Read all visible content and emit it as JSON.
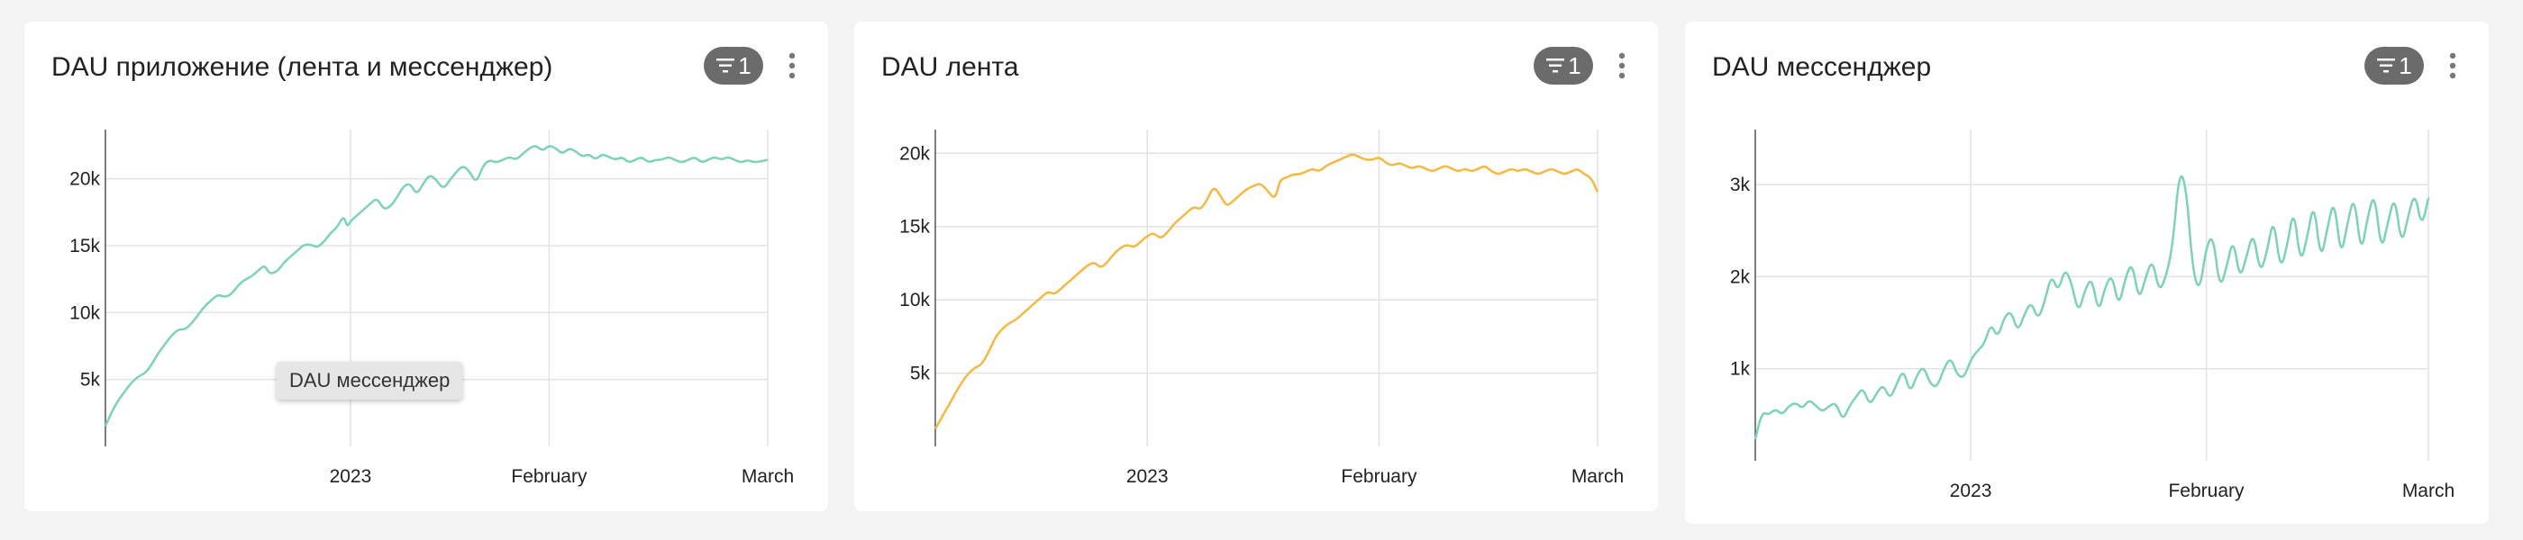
{
  "cards": [
    {
      "title": "DAU приложение (лента и мессенджер)",
      "filter_count": "1",
      "filter_icon": "filter-icon",
      "menu_icon": "more-vertical-icon",
      "tooltip": "DAU мессенджер"
    },
    {
      "title": "DAU лента",
      "filter_count": "1",
      "filter_icon": "filter-icon",
      "menu_icon": "more-vertical-icon"
    },
    {
      "title": "DAU мессенджер",
      "filter_count": "1",
      "filter_icon": "filter-icon",
      "menu_icon": "more-vertical-icon"
    }
  ],
  "chart_data": [
    {
      "type": "line",
      "color": "#7dd3b4",
      "ylim": [
        0,
        23000
      ],
      "yticks": [
        5000,
        10000,
        15000,
        20000
      ],
      "ytick_labels": [
        "5k",
        "10k",
        "15k",
        "20k"
      ],
      "x_ticks": [
        {
          "label": "2023",
          "t": 0.37
        },
        {
          "label": "February",
          "t": 0.67
        },
        {
          "label": "March",
          "t": 1.0
        }
      ],
      "points": [
        [
          0,
          0.07
        ],
        [
          0.01,
          0.12
        ],
        [
          0.02,
          0.16
        ],
        [
          0.03,
          0.19
        ],
        [
          0.04,
          0.22
        ],
        [
          0.05,
          0.24
        ],
        [
          0.06,
          0.25
        ],
        [
          0.07,
          0.28
        ],
        [
          0.08,
          0.32
        ],
        [
          0.09,
          0.35
        ],
        [
          0.1,
          0.38
        ],
        [
          0.11,
          0.4
        ],
        [
          0.12,
          0.4
        ],
        [
          0.13,
          0.42
        ],
        [
          0.14,
          0.45
        ],
        [
          0.15,
          0.48
        ],
        [
          0.16,
          0.5
        ],
        [
          0.17,
          0.52
        ],
        [
          0.18,
          0.51
        ],
        [
          0.19,
          0.52
        ],
        [
          0.2,
          0.55
        ],
        [
          0.21,
          0.57
        ],
        [
          0.22,
          0.58
        ],
        [
          0.23,
          0.6
        ],
        [
          0.24,
          0.62
        ],
        [
          0.245,
          0.6
        ],
        [
          0.25,
          0.59
        ],
        [
          0.26,
          0.6
        ],
        [
          0.27,
          0.63
        ],
        [
          0.28,
          0.65
        ],
        [
          0.29,
          0.67
        ],
        [
          0.3,
          0.69
        ],
        [
          0.31,
          0.69
        ],
        [
          0.32,
          0.68
        ],
        [
          0.33,
          0.7
        ],
        [
          0.34,
          0.73
        ],
        [
          0.35,
          0.75
        ],
        [
          0.36,
          0.79
        ],
        [
          0.365,
          0.75
        ],
        [
          0.37,
          0.77
        ],
        [
          0.38,
          0.79
        ],
        [
          0.39,
          0.81
        ],
        [
          0.4,
          0.83
        ],
        [
          0.41,
          0.85
        ],
        [
          0.42,
          0.81
        ],
        [
          0.43,
          0.82
        ],
        [
          0.44,
          0.85
        ],
        [
          0.45,
          0.89
        ],
        [
          0.46,
          0.9
        ],
        [
          0.47,
          0.86
        ],
        [
          0.48,
          0.9
        ],
        [
          0.49,
          0.93
        ],
        [
          0.5,
          0.91
        ],
        [
          0.51,
          0.88
        ],
        [
          0.52,
          0.91
        ],
        [
          0.53,
          0.94
        ],
        [
          0.54,
          0.96
        ],
        [
          0.55,
          0.94
        ],
        [
          0.56,
          0.9
        ],
        [
          0.57,
          0.96
        ],
        [
          0.58,
          0.98
        ],
        [
          0.59,
          0.97
        ],
        [
          0.6,
          0.98
        ],
        [
          0.61,
          0.99
        ],
        [
          0.62,
          0.98
        ],
        [
          0.63,
          1.0
        ],
        [
          0.64,
          1.02
        ],
        [
          0.65,
          1.03
        ],
        [
          0.66,
          1.01
        ],
        [
          0.67,
          1.03
        ],
        [
          0.68,
          1.02
        ],
        [
          0.69,
          1.0
        ],
        [
          0.7,
          1.02
        ],
        [
          0.71,
          1.01
        ],
        [
          0.72,
          0.99
        ],
        [
          0.73,
          1.0
        ],
        [
          0.74,
          0.98
        ],
        [
          0.75,
          1.0
        ],
        [
          0.76,
          0.99
        ],
        [
          0.77,
          0.98
        ],
        [
          0.78,
          0.99
        ],
        [
          0.79,
          0.97
        ],
        [
          0.8,
          0.98
        ],
        [
          0.81,
          0.99
        ],
        [
          0.82,
          0.97
        ],
        [
          0.83,
          0.98
        ],
        [
          0.84,
          0.98
        ],
        [
          0.85,
          0.99
        ],
        [
          0.86,
          0.98
        ],
        [
          0.87,
          0.97
        ],
        [
          0.88,
          0.98
        ],
        [
          0.89,
          0.99
        ],
        [
          0.9,
          0.97
        ],
        [
          0.91,
          0.98
        ],
        [
          0.92,
          0.99
        ],
        [
          0.93,
          0.98
        ],
        [
          0.94,
          0.99
        ],
        [
          0.95,
          0.98
        ],
        [
          0.96,
          0.97
        ],
        [
          0.97,
          0.98
        ],
        [
          0.98,
          0.97
        ],
        [
          1.0,
          0.98
        ]
      ]
    },
    {
      "type": "line",
      "color": "#f5b942",
      "ylim": [
        0,
        21000
      ],
      "yticks": [
        5000,
        10000,
        15000,
        20000
      ],
      "ytick_labels": [
        "5k",
        "10k",
        "15k",
        "20k"
      ],
      "x_ticks": [
        {
          "label": "2023",
          "t": 0.32
        },
        {
          "label": "February",
          "t": 0.67
        },
        {
          "label": "March",
          "t": 1.0
        }
      ],
      "points": [
        [
          0,
          0.06
        ],
        [
          0.01,
          0.1
        ],
        [
          0.02,
          0.14
        ],
        [
          0.03,
          0.18
        ],
        [
          0.04,
          0.22
        ],
        [
          0.05,
          0.25
        ],
        [
          0.06,
          0.27
        ],
        [
          0.07,
          0.28
        ],
        [
          0.08,
          0.32
        ],
        [
          0.09,
          0.37
        ],
        [
          0.1,
          0.4
        ],
        [
          0.11,
          0.42
        ],
        [
          0.12,
          0.43
        ],
        [
          0.13,
          0.45
        ],
        [
          0.14,
          0.47
        ],
        [
          0.15,
          0.49
        ],
        [
          0.16,
          0.51
        ],
        [
          0.17,
          0.53
        ],
        [
          0.18,
          0.52
        ],
        [
          0.19,
          0.54
        ],
        [
          0.2,
          0.56
        ],
        [
          0.21,
          0.58
        ],
        [
          0.22,
          0.6
        ],
        [
          0.23,
          0.62
        ],
        [
          0.24,
          0.63
        ],
        [
          0.25,
          0.61
        ],
        [
          0.26,
          0.63
        ],
        [
          0.27,
          0.66
        ],
        [
          0.28,
          0.68
        ],
        [
          0.29,
          0.69
        ],
        [
          0.3,
          0.68
        ],
        [
          0.31,
          0.7
        ],
        [
          0.32,
          0.72
        ],
        [
          0.33,
          0.73
        ],
        [
          0.34,
          0.71
        ],
        [
          0.35,
          0.73
        ],
        [
          0.36,
          0.76
        ],
        [
          0.37,
          0.78
        ],
        [
          0.38,
          0.8
        ],
        [
          0.39,
          0.82
        ],
        [
          0.4,
          0.81
        ],
        [
          0.41,
          0.84
        ],
        [
          0.42,
          0.89
        ],
        [
          0.43,
          0.86
        ],
        [
          0.44,
          0.82
        ],
        [
          0.45,
          0.84
        ],
        [
          0.46,
          0.86
        ],
        [
          0.47,
          0.88
        ],
        [
          0.48,
          0.89
        ],
        [
          0.49,
          0.9
        ],
        [
          0.5,
          0.88
        ],
        [
          0.51,
          0.85
        ],
        [
          0.515,
          0.86
        ],
        [
          0.52,
          0.91
        ],
        [
          0.53,
          0.92
        ],
        [
          0.54,
          0.93
        ],
        [
          0.55,
          0.93
        ],
        [
          0.56,
          0.94
        ],
        [
          0.57,
          0.95
        ],
        [
          0.58,
          0.94
        ],
        [
          0.59,
          0.96
        ],
        [
          0.6,
          0.97
        ],
        [
          0.61,
          0.98
        ],
        [
          0.62,
          0.99
        ],
        [
          0.63,
          1.0
        ],
        [
          0.64,
          0.99
        ],
        [
          0.65,
          0.98
        ],
        [
          0.66,
          0.98
        ],
        [
          0.67,
          0.99
        ],
        [
          0.68,
          0.97
        ],
        [
          0.69,
          0.96
        ],
        [
          0.7,
          0.97
        ],
        [
          0.71,
          0.96
        ],
        [
          0.72,
          0.95
        ],
        [
          0.73,
          0.96
        ],
        [
          0.74,
          0.95
        ],
        [
          0.75,
          0.94
        ],
        [
          0.76,
          0.95
        ],
        [
          0.77,
          0.96
        ],
        [
          0.78,
          0.95
        ],
        [
          0.79,
          0.94
        ],
        [
          0.8,
          0.95
        ],
        [
          0.81,
          0.94
        ],
        [
          0.82,
          0.95
        ],
        [
          0.83,
          0.96
        ],
        [
          0.84,
          0.94
        ],
        [
          0.85,
          0.93
        ],
        [
          0.86,
          0.94
        ],
        [
          0.87,
          0.95
        ],
        [
          0.88,
          0.94
        ],
        [
          0.89,
          0.95
        ],
        [
          0.9,
          0.94
        ],
        [
          0.91,
          0.93
        ],
        [
          0.92,
          0.94
        ],
        [
          0.93,
          0.95
        ],
        [
          0.94,
          0.94
        ],
        [
          0.95,
          0.93
        ],
        [
          0.96,
          0.94
        ],
        [
          0.97,
          0.95
        ],
        [
          0.98,
          0.93
        ],
        [
          0.99,
          0.92
        ],
        [
          1.0,
          0.87
        ]
      ]
    },
    {
      "type": "line",
      "color": "#7dd3b4",
      "ylim": [
        0,
        3500
      ],
      "yticks": [
        1000,
        2000,
        3000
      ],
      "ytick_labels": [
        "1k",
        "2k",
        "3k"
      ],
      "x_ticks": [
        {
          "label": "2023",
          "t": 0.32
        },
        {
          "label": "February",
          "t": 0.67
        },
        {
          "label": "March",
          "t": 1.0
        }
      ],
      "points": [
        [
          0,
          0.07
        ],
        [
          0.01,
          0.16
        ],
        [
          0.02,
          0.15
        ],
        [
          0.03,
          0.17
        ],
        [
          0.04,
          0.15
        ],
        [
          0.05,
          0.18
        ],
        [
          0.06,
          0.19
        ],
        [
          0.07,
          0.17
        ],
        [
          0.08,
          0.2
        ],
        [
          0.09,
          0.18
        ],
        [
          0.1,
          0.16
        ],
        [
          0.11,
          0.18
        ],
        [
          0.12,
          0.19
        ],
        [
          0.13,
          0.13
        ],
        [
          0.14,
          0.18
        ],
        [
          0.15,
          0.21
        ],
        [
          0.16,
          0.24
        ],
        [
          0.17,
          0.18
        ],
        [
          0.18,
          0.22
        ],
        [
          0.19,
          0.25
        ],
        [
          0.2,
          0.2
        ],
        [
          0.21,
          0.25
        ],
        [
          0.22,
          0.3
        ],
        [
          0.23,
          0.22
        ],
        [
          0.24,
          0.28
        ],
        [
          0.25,
          0.31
        ],
        [
          0.26,
          0.25
        ],
        [
          0.27,
          0.24
        ],
        [
          0.28,
          0.3
        ],
        [
          0.29,
          0.34
        ],
        [
          0.3,
          0.28
        ],
        [
          0.31,
          0.27
        ],
        [
          0.32,
          0.33
        ],
        [
          0.33,
          0.36
        ],
        [
          0.34,
          0.38
        ],
        [
          0.35,
          0.45
        ],
        [
          0.36,
          0.4
        ],
        [
          0.37,
          0.47
        ],
        [
          0.38,
          0.49
        ],
        [
          0.39,
          0.42
        ],
        [
          0.4,
          0.48
        ],
        [
          0.41,
          0.52
        ],
        [
          0.42,
          0.46
        ],
        [
          0.43,
          0.52
        ],
        [
          0.44,
          0.61
        ],
        [
          0.45,
          0.55
        ],
        [
          0.46,
          0.63
        ],
        [
          0.47,
          0.58
        ],
        [
          0.48,
          0.48
        ],
        [
          0.49,
          0.56
        ],
        [
          0.5,
          0.6
        ],
        [
          0.51,
          0.48
        ],
        [
          0.52,
          0.57
        ],
        [
          0.53,
          0.61
        ],
        [
          0.54,
          0.5
        ],
        [
          0.55,
          0.6
        ],
        [
          0.56,
          0.65
        ],
        [
          0.57,
          0.52
        ],
        [
          0.58,
          0.6
        ],
        [
          0.59,
          0.66
        ],
        [
          0.6,
          0.55
        ],
        [
          0.61,
          0.6
        ],
        [
          0.62,
          0.7
        ],
        [
          0.63,
          0.95
        ],
        [
          0.64,
          0.9
        ],
        [
          0.65,
          0.62
        ],
        [
          0.66,
          0.55
        ],
        [
          0.67,
          0.7
        ],
        [
          0.68,
          0.74
        ],
        [
          0.69,
          0.56
        ],
        [
          0.7,
          0.63
        ],
        [
          0.71,
          0.73
        ],
        [
          0.72,
          0.59
        ],
        [
          0.73,
          0.67
        ],
        [
          0.74,
          0.75
        ],
        [
          0.75,
          0.61
        ],
        [
          0.76,
          0.68
        ],
        [
          0.77,
          0.8
        ],
        [
          0.78,
          0.62
        ],
        [
          0.79,
          0.7
        ],
        [
          0.8,
          0.83
        ],
        [
          0.81,
          0.64
        ],
        [
          0.82,
          0.73
        ],
        [
          0.83,
          0.85
        ],
        [
          0.84,
          0.65
        ],
        [
          0.85,
          0.76
        ],
        [
          0.86,
          0.86
        ],
        [
          0.87,
          0.66
        ],
        [
          0.88,
          0.78
        ],
        [
          0.89,
          0.87
        ],
        [
          0.9,
          0.67
        ],
        [
          0.91,
          0.8
        ],
        [
          0.92,
          0.88
        ],
        [
          0.93,
          0.68
        ],
        [
          0.94,
          0.78
        ],
        [
          0.95,
          0.87
        ],
        [
          0.96,
          0.7
        ],
        [
          0.97,
          0.8
        ],
        [
          0.98,
          0.88
        ],
        [
          0.99,
          0.76
        ],
        [
          1.0,
          0.86
        ]
      ]
    }
  ]
}
